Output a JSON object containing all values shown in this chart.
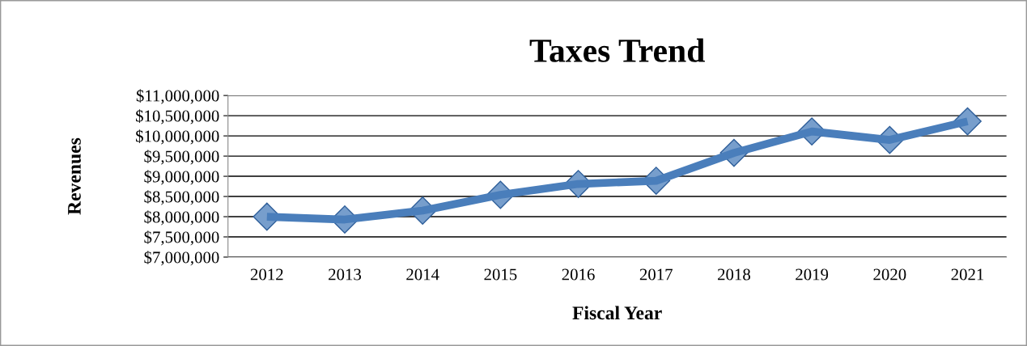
{
  "chart_data": {
    "type": "line",
    "title": "Taxes Trend",
    "xlabel": "Fiscal Year",
    "ylabel": "Revenues",
    "categories": [
      "2012",
      "2013",
      "2014",
      "2015",
      "2016",
      "2017",
      "2018",
      "2019",
      "2020",
      "2021"
    ],
    "series": [
      {
        "color": "#4a7ebb",
        "values": [
          8000000,
          7930000,
          8150000,
          8540000,
          8810000,
          8890000,
          9580000,
          10110000,
          9900000,
          10360000
        ]
      }
    ],
    "ylim": [
      7000000,
      11000000
    ],
    "yticks": [
      {
        "value": 7000000,
        "label": "$7,000,000"
      },
      {
        "value": 7500000,
        "label": "$7,500,000"
      },
      {
        "value": 8000000,
        "label": "$8,000,000"
      },
      {
        "value": 8500000,
        "label": "$8,500,000"
      },
      {
        "value": 9000000,
        "label": "$9,000,000"
      },
      {
        "value": 9500000,
        "label": "$9,500,000"
      },
      {
        "value": 10000000,
        "label": "$10,000,000"
      },
      {
        "value": 10500000,
        "label": "$10,500,000"
      },
      {
        "value": 11000000,
        "label": "$11,000,000"
      }
    ],
    "grid": "y",
    "marker": "diamond",
    "line_style": "solid",
    "legend": false
  }
}
